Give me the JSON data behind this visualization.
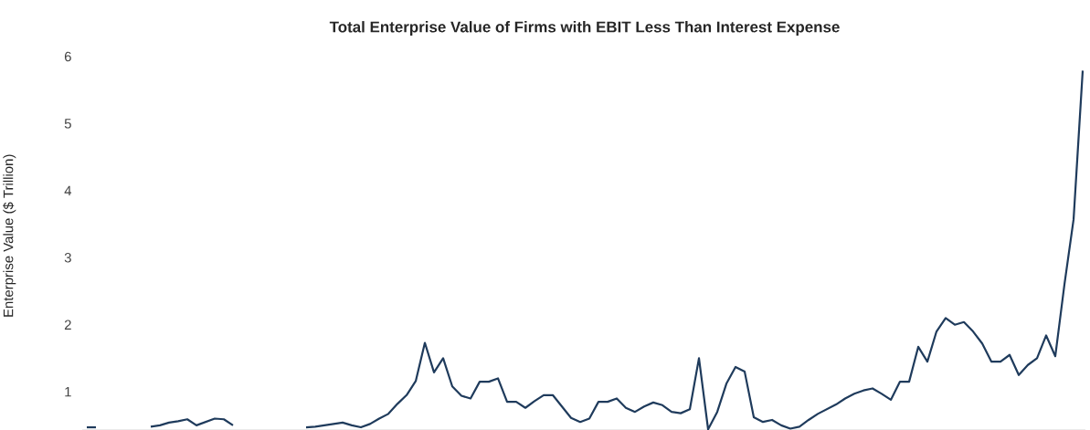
{
  "chart_data": {
    "type": "line",
    "title": "Total Enterprise Value of Firms with EBIT Less Than Interest Expense",
    "ylabel": "Enterprise Value ($ Trillion)",
    "categories": [
      null,
      null,
      null,
      null,
      null,
      null,
      null,
      null,
      null,
      null,
      null,
      null,
      null,
      null,
      null,
      null,
      null,
      null,
      null,
      null,
      null,
      null,
      null,
      null,
      null,
      null,
      null,
      null,
      null,
      null,
      null,
      null,
      null,
      null,
      null,
      null,
      null,
      null,
      null,
      null,
      null,
      null,
      null,
      null,
      null,
      null,
      null,
      null,
      null,
      null,
      null,
      null,
      null,
      null,
      null,
      null,
      null,
      null,
      null,
      null,
      null,
      null,
      null,
      null,
      null,
      null,
      null,
      null,
      null,
      null,
      null,
      null,
      null,
      null,
      null,
      null,
      null,
      null,
      null,
      null,
      null,
      null,
      null,
      null,
      null,
      null,
      null,
      null,
      null,
      null,
      null,
      null,
      null,
      null,
      null,
      null,
      null,
      null,
      null,
      null,
      null,
      null,
      null,
      null,
      null,
      null,
      null,
      null,
      null,
      null
    ],
    "series": [
      {
        "color": "#1f3b5c",
        "values": [
          0.47,
          0.47,
          null,
          null,
          null,
          null,
          null,
          null,
          null,
          null,
          null,
          null,
          null,
          null,
          null,
          null,
          null,
          null,
          null,
          null,
          null,
          null,
          null,
          null,
          null,
          null,
          null,
          null,
          null,
          null,
          null,
          null,
          null,
          null,
          null,
          null,
          null,
          null,
          null,
          null,
          null,
          null,
          null,
          null,
          null,
          null,
          null,
          null,
          null,
          null,
          null,
          null,
          null,
          null,
          null,
          null,
          null,
          null,
          null,
          null,
          null,
          null,
          null,
          null,
          null,
          null,
          null,
          null,
          null,
          null,
          null,
          null,
          null,
          null,
          null,
          null,
          null,
          null,
          null,
          null,
          null,
          null,
          null,
          null,
          null,
          null,
          null,
          null,
          null,
          null,
          null,
          null,
          null,
          null,
          null,
          null,
          null,
          null,
          null,
          null,
          null,
          null,
          null,
          null,
          null,
          null,
          null,
          null,
          null,
          null
        ]
      },
      {
        "color": "#1f3b5c",
        "values": [
          null,
          null,
          null,
          null,
          null,
          null,
          null,
          0.48,
          0.5,
          0.54,
          0.56,
          0.59,
          0.5,
          0.55,
          0.6,
          0.59,
          0.5,
          null,
          null,
          null,
          null,
          null,
          null,
          null,
          null,
          null,
          null,
          null,
          null,
          null,
          null,
          null,
          null,
          null,
          null,
          null,
          null,
          null,
          null,
          null,
          null,
          null,
          null,
          null,
          null,
          null,
          null,
          null,
          null,
          null,
          null,
          null,
          null,
          null,
          null,
          null,
          null,
          null,
          null,
          null,
          null,
          null,
          null,
          null,
          null,
          null,
          null,
          null,
          null,
          null,
          null,
          null,
          null,
          null,
          null,
          null,
          null,
          null,
          null,
          null,
          null,
          null,
          null,
          null,
          null,
          null,
          null,
          null,
          null,
          null,
          null,
          null,
          null,
          null,
          null,
          null,
          null,
          null,
          null,
          null,
          null,
          null,
          null,
          null,
          null,
          null,
          null,
          null,
          null,
          null
        ]
      },
      {
        "color": "#1f3b5c",
        "values": [
          null,
          null,
          null,
          null,
          null,
          null,
          null,
          null,
          null,
          null,
          null,
          null,
          null,
          null,
          null,
          null,
          null,
          null,
          null,
          null,
          null,
          null,
          null,
          null,
          0.47,
          0.48,
          0.5,
          0.52,
          0.54,
          0.5,
          0.47,
          0.52,
          0.6,
          0.67,
          0.82,
          0.95,
          1.16,
          1.73,
          1.29,
          1.5,
          1.08,
          0.94,
          0.9,
          1.15,
          1.15,
          1.2,
          0.85,
          0.85,
          0.76,
          0.86,
          0.95,
          0.95,
          0.78,
          0.61,
          0.55,
          0.6,
          0.85,
          0.85,
          0.9,
          0.76,
          0.7,
          0.78,
          0.84,
          0.8,
          0.7,
          0.68,
          0.74,
          1.5,
          0.44,
          0.7,
          1.12,
          1.37,
          1.3,
          0.62,
          0.55,
          0.58,
          0.5,
          0.45,
          0.48,
          0.58,
          0.67,
          0.74,
          0.81,
          0.9,
          0.97,
          1.02,
          1.05,
          0.97,
          0.88,
          1.15,
          1.15,
          1.67,
          1.45,
          1.9,
          2.1,
          2.0,
          2.04,
          1.9,
          1.72,
          1.45,
          1.45,
          1.55,
          1.25,
          1.4,
          1.5,
          1.84,
          1.53,
          2.6,
          3.57,
          5.79
        ]
      }
    ],
    "ylim": [
      0.43,
      6
    ],
    "yticks": [
      1,
      2,
      3,
      4,
      5,
      6
    ],
    "tick_labels": "y"
  }
}
